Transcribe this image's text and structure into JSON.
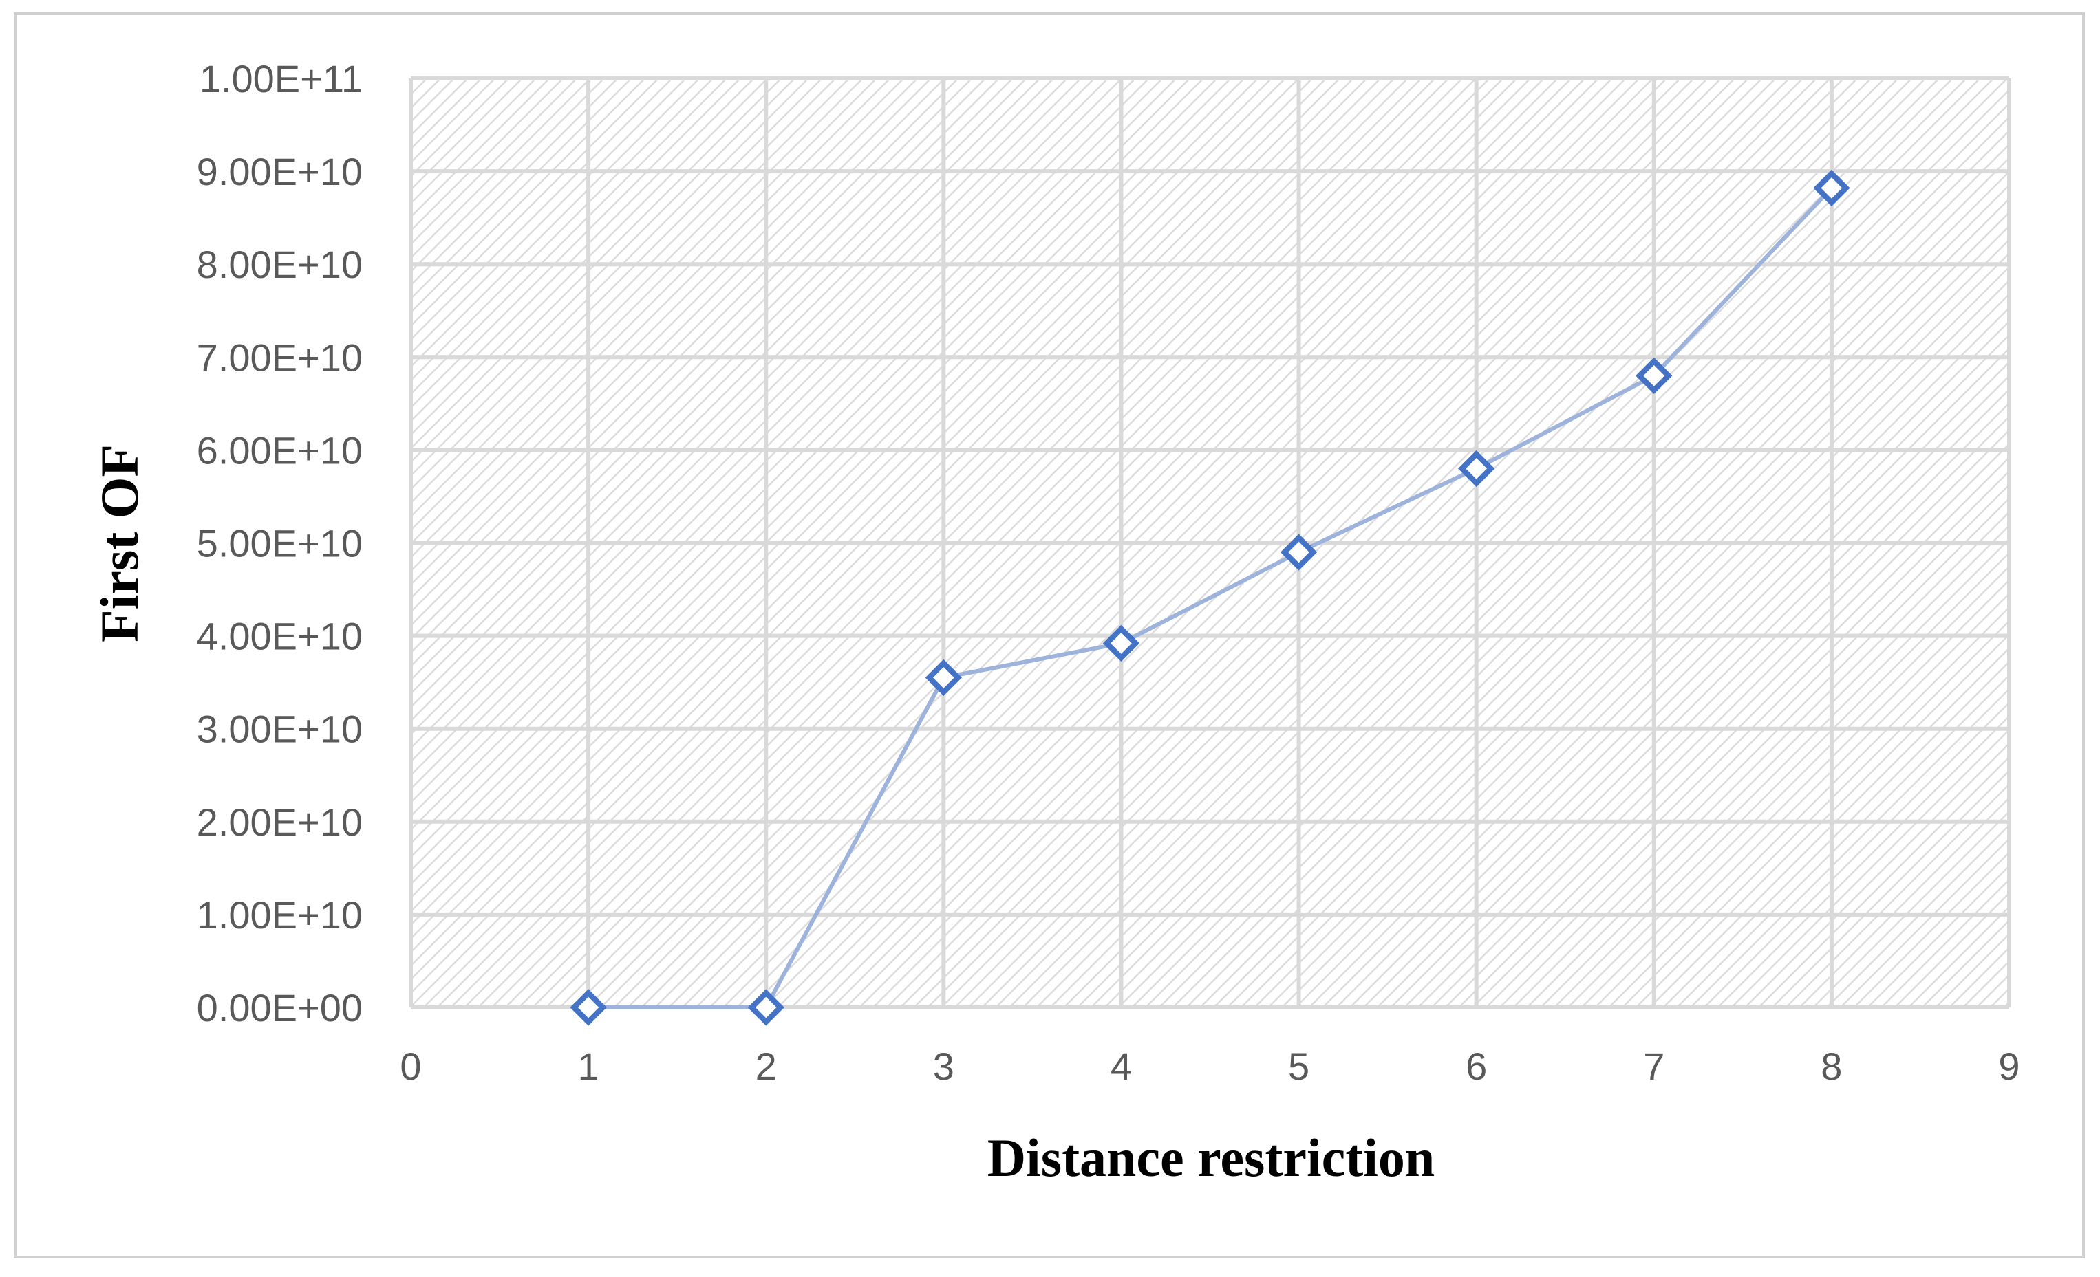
{
  "chart_data": {
    "type": "scatter",
    "xlabel": "Distance restriction",
    "ylabel": "First OF",
    "xlim": [
      0,
      9
    ],
    "ylim": [
      0,
      100000000000
    ],
    "x_ticks": [
      "0",
      "1",
      "2",
      "3",
      "4",
      "5",
      "6",
      "7",
      "8",
      "9"
    ],
    "y_ticks": [
      "0.00E+00",
      "1.00E+10",
      "2.00E+10",
      "3.00E+10",
      "4.00E+10",
      "5.00E+10",
      "6.00E+10",
      "7.00E+10",
      "8.00E+10",
      "9.00E+10",
      "1.00E+11"
    ],
    "grid": true,
    "legend": "none",
    "series": [
      {
        "x": [
          1,
          2,
          3,
          4,
          5,
          6,
          7,
          8
        ],
        "y": [
          0,
          0,
          35500000000,
          39200000000,
          49000000000,
          58000000000,
          68000000000,
          88200000000
        ],
        "line_color": "#9db3db",
        "marker": "diamond-open",
        "marker_color": "#4472c4"
      }
    ],
    "plot_background": "hatched-light-gray"
  }
}
